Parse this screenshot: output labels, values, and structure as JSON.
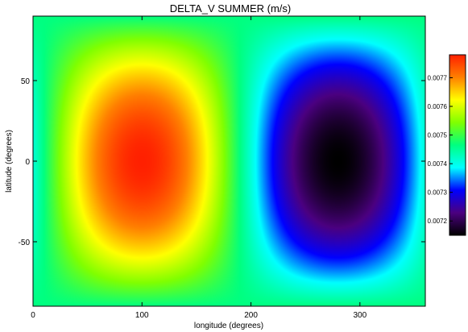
{
  "chart_data": {
    "type": "heatmap",
    "title": "DELTA_V SUMMER (m/s)",
    "xlabel": "longitude (degrees)",
    "ylabel": "latitude (degrees)",
    "xlim": [
      0,
      360
    ],
    "ylim": [
      -90,
      90
    ],
    "x_ticks": [
      0,
      100,
      200,
      300
    ],
    "y_ticks": [
      -50,
      0,
      50
    ],
    "grid": false,
    "colorbar": {
      "placement": "right",
      "range": [
        0.00715,
        0.00778
      ],
      "ticks": [
        0.0072,
        0.0073,
        0.0074,
        0.0075,
        0.0076,
        0.0077
      ],
      "tick_labels": [
        "0.0072",
        "0.0073",
        "0.0074",
        "0.0075",
        "0.0076",
        "0.0077"
      ],
      "colors": [
        "#000000",
        "#4b0080",
        "#0000ff",
        "#00ffff",
        "#00ff80",
        "#80ff00",
        "#ffff00",
        "#ff8000",
        "#ff2000"
      ]
    },
    "features": [
      {
        "kind": "maximum",
        "x": 100,
        "y": 0,
        "value": 0.00777
      },
      {
        "kind": "minimum",
        "x": 280,
        "y": 0,
        "value": 0.00715
      }
    ]
  }
}
